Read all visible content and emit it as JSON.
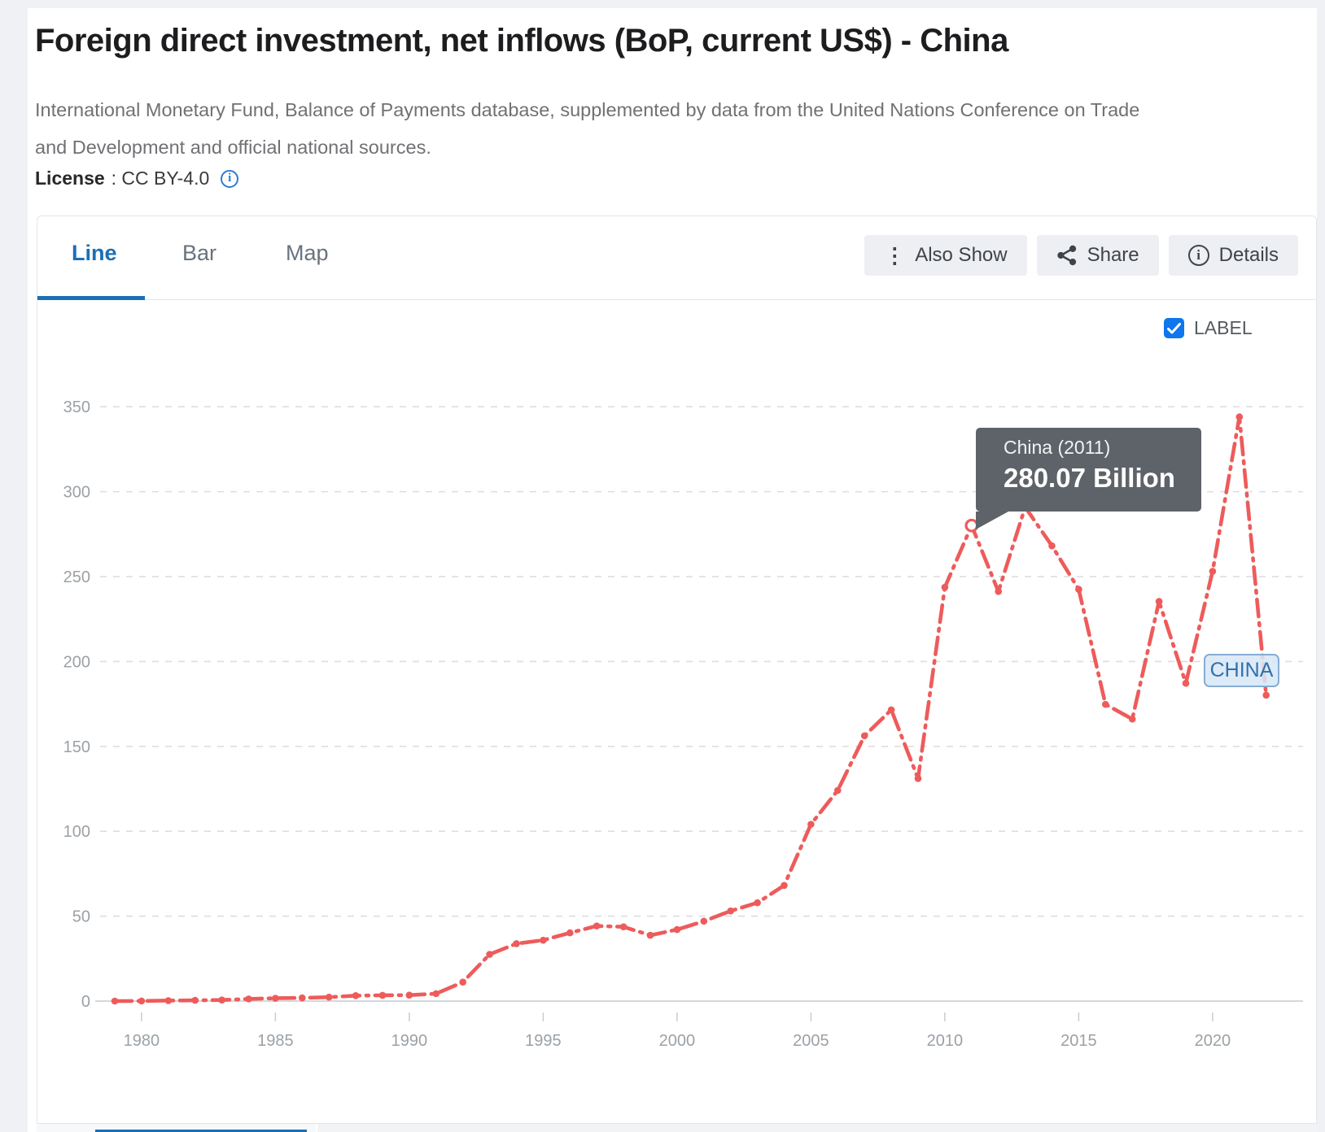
{
  "page": {
    "title": "Foreign direct investment, net inflows (BoP, current US$) - China",
    "source_line1": "International Monetary Fund, Balance of Payments database, supplemented by data from the United Nations Conference on Trade",
    "source_line2": "and Development and official national sources.",
    "license_label": "License",
    "license_value": ": CC BY-4.0"
  },
  "tabs": [
    {
      "label": "Line",
      "active": true
    },
    {
      "label": "Bar",
      "active": false
    },
    {
      "label": "Map",
      "active": false
    }
  ],
  "toolbar": {
    "also_show_label": "Also Show",
    "share_label": "Share",
    "details_label": "Details"
  },
  "label_toggle": {
    "label": "LABEL",
    "checked": true
  },
  "tooltip": {
    "title": "China (2011)",
    "value": "280.07 Billion"
  },
  "series_badge": "CHINA",
  "colors": {
    "line_red": "#ee5b5b",
    "accent_blue": "#1b6fb5",
    "checkbox_blue": "#0e76ee",
    "tooltip_bg": "#5d6369",
    "grid_gray": "#dcdee1",
    "axis_label_gray": "#9ba1a6"
  },
  "chart_data": {
    "type": "line",
    "title": "Foreign direct investment, net inflows (BoP, current US$) - China",
    "unit": "Billion",
    "legend_position": "none",
    "grid": "dashed-horizontal",
    "xlim": [
      1978,
      2023
    ],
    "ylim": [
      0,
      350
    ],
    "x_ticks": [
      1980,
      1985,
      1990,
      1995,
      2000,
      2005,
      2010,
      2015,
      2020
    ],
    "y_ticks": [
      0,
      50,
      100,
      150,
      200,
      250,
      300,
      350
    ],
    "highlight": {
      "series": "China",
      "year": 2011,
      "value": 280.07,
      "label": "280.07 Billion"
    },
    "series": [
      {
        "name": "China",
        "x": [
          1979,
          1980,
          1981,
          1982,
          1983,
          1984,
          1985,
          1986,
          1987,
          1988,
          1989,
          1990,
          1991,
          1992,
          1993,
          1994,
          1995,
          1996,
          1997,
          1998,
          1999,
          2000,
          2001,
          2002,
          2003,
          2004,
          2005,
          2006,
          2007,
          2008,
          2009,
          2010,
          2011,
          2012,
          2013,
          2014,
          2015,
          2016,
          2017,
          2018,
          2019,
          2020,
          2021,
          2022
        ],
        "values": [
          0.0,
          0.06,
          0.27,
          0.43,
          0.64,
          1.26,
          1.66,
          1.88,
          2.31,
          3.19,
          3.39,
          3.49,
          4.37,
          11.16,
          27.52,
          33.79,
          35.85,
          40.18,
          44.24,
          43.75,
          38.75,
          42.1,
          47.05,
          53.07,
          57.9,
          68.12,
          104.11,
          124.08,
          156.25,
          171.53,
          131.06,
          243.7,
          280.07,
          241.21,
          290.93,
          268.1,
          242.49,
          174.75,
          166.08,
          235.37,
          187.17,
          253.1,
          344.07,
          180.17
        ]
      }
    ]
  }
}
